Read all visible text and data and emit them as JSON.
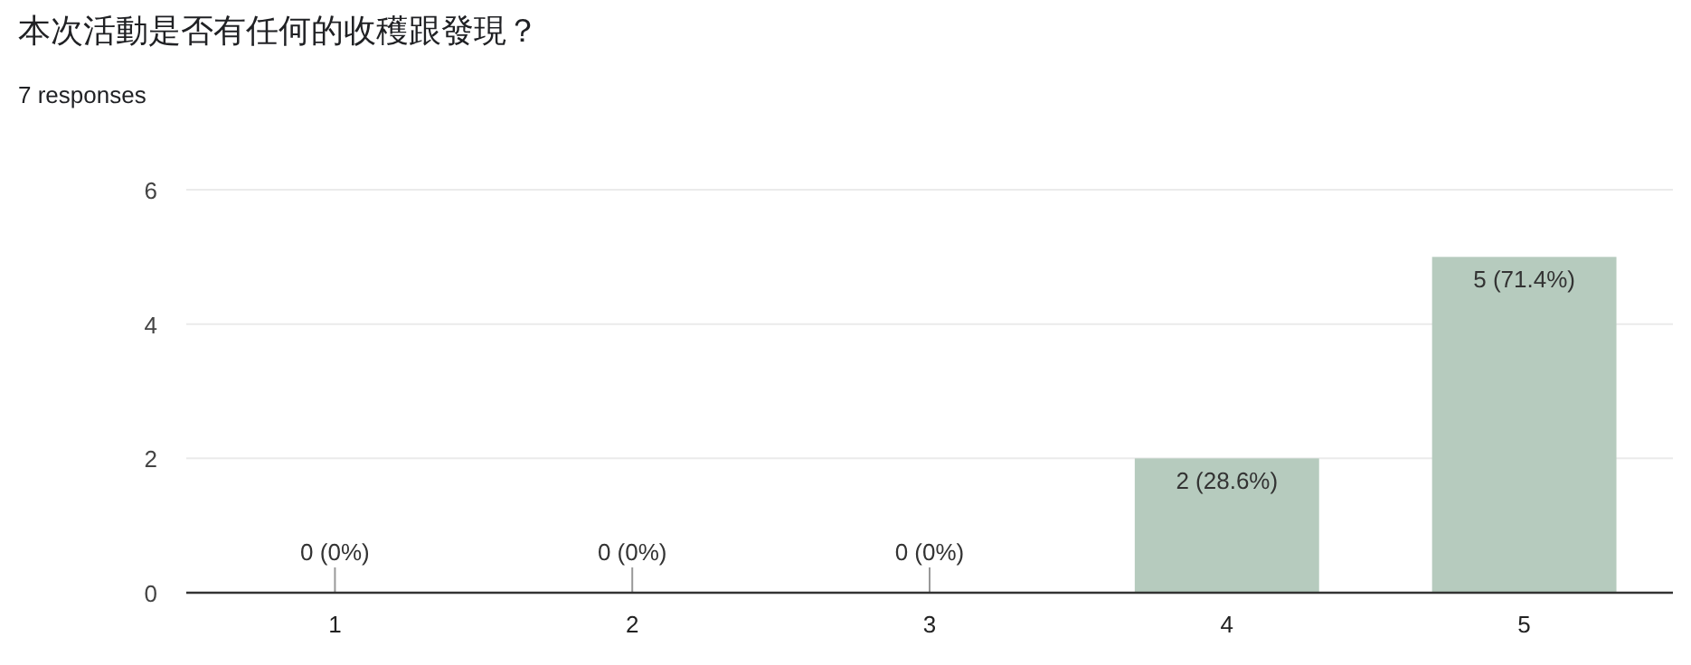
{
  "chart_data": {
    "type": "bar",
    "title": "本次活動是否有任何的收穫跟發現？",
    "subtitle": "7 responses",
    "categories": [
      "1",
      "2",
      "3",
      "4",
      "5"
    ],
    "values": [
      0,
      0,
      0,
      2,
      5
    ],
    "value_labels": [
      "0 (0%)",
      "0 (0%)",
      "0 (0%)",
      "2 (28.6%)",
      "5 (71.4%)"
    ],
    "color": "#b6cbbe",
    "ylim": [
      0,
      6
    ],
    "yticks": [
      0,
      2,
      4,
      6
    ],
    "grid": "y"
  }
}
